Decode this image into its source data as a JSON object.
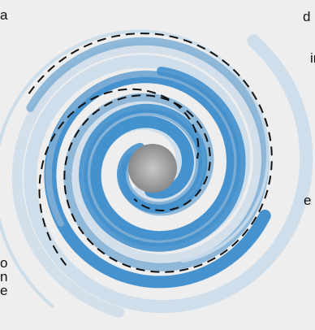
{
  "fragments": {
    "top_left": "a",
    "top_right": "d",
    "right_upper": "in",
    "right_lower": "e",
    "left_lower_1": "o",
    "left_lower_2": "n",
    "left_lower_3": "e"
  },
  "icons": {
    "illustration": "spiral-icon"
  },
  "colors": {
    "background": "#eeeeee",
    "blue_light": "#c9dbea",
    "blue_mid": "#7eaed5",
    "blue_strong": "#3b8ccb",
    "center_gray": "#9a9a9a",
    "dash": "#111111",
    "text": "#111111"
  }
}
